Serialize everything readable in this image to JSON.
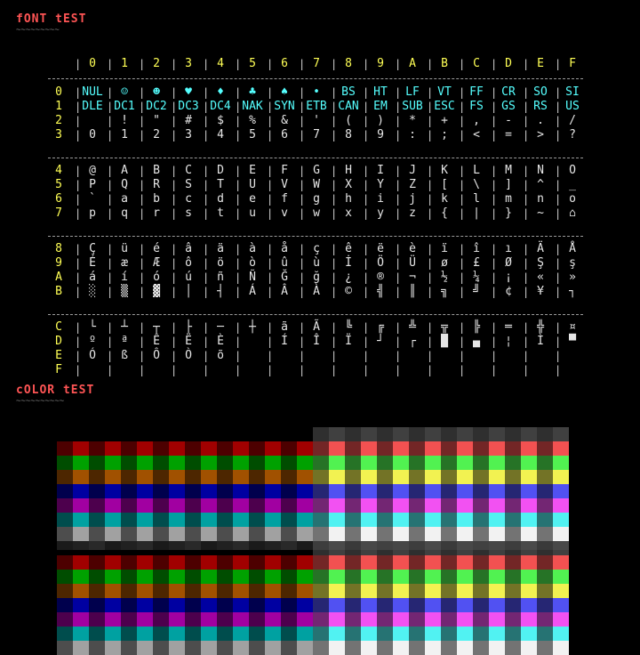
{
  "font_test": {
    "title": "fONT tEST",
    "underline": "~~~~~~~~~",
    "col_headers": [
      "0",
      "1",
      "2",
      "3",
      "4",
      "5",
      "6",
      "7",
      "8",
      "9",
      "A",
      "B",
      "C",
      "D",
      "E",
      "F"
    ],
    "row_headers": [
      "0",
      "1",
      "2",
      "3",
      "4",
      "5",
      "6",
      "7",
      "8",
      "9",
      "A",
      "B",
      "C",
      "D",
      "E",
      "F"
    ],
    "rows": [
      [
        "NUL",
        "☺",
        "☻",
        "♥",
        "♦",
        "♣",
        "♠",
        "•",
        "BS",
        "HT",
        "LF",
        "VT",
        "FF",
        "CR",
        "SO",
        "SI"
      ],
      [
        "DLE",
        "DC1",
        "DC2",
        "DC3",
        "DC4",
        "NAK",
        "SYN",
        "ETB",
        "CAN",
        "EM",
        "SUB",
        "ESC",
        "FS",
        "GS",
        "RS",
        "US"
      ],
      [
        " ",
        "!",
        "\"",
        "#",
        "$",
        "%",
        "&",
        "'",
        "(",
        ")",
        "*",
        "+",
        ",",
        "-",
        ".",
        "/"
      ],
      [
        "0",
        "1",
        "2",
        "3",
        "4",
        "5",
        "6",
        "7",
        "8",
        "9",
        ":",
        ";",
        "<",
        "=",
        ">",
        "?"
      ],
      [
        "@",
        "A",
        "B",
        "C",
        "D",
        "E",
        "F",
        "G",
        "H",
        "I",
        "J",
        "K",
        "L",
        "M",
        "N",
        "O"
      ],
      [
        "P",
        "Q",
        "R",
        "S",
        "T",
        "U",
        "V",
        "W",
        "X",
        "Y",
        "Z",
        "[",
        "\\",
        "]",
        "^",
        "_"
      ],
      [
        "`",
        "a",
        "b",
        "c",
        "d",
        "e",
        "f",
        "g",
        "h",
        "i",
        "j",
        "k",
        "l",
        "m",
        "n",
        "o"
      ],
      [
        "p",
        "q",
        "r",
        "s",
        "t",
        "u",
        "v",
        "w",
        "x",
        "y",
        "z",
        "{",
        "|",
        "}",
        "~",
        "⌂"
      ],
      [
        "Ç",
        "ü",
        "é",
        "â",
        "ä",
        "à",
        "å",
        "ç",
        "ê",
        "ë",
        "è",
        "ï",
        "î",
        "ı",
        "Ä",
        "Å"
      ],
      [
        "É",
        "æ",
        "Æ",
        "ô",
        "ö",
        "ò",
        "û",
        "ù",
        "İ",
        "Ö",
        "Ü",
        "ø",
        "£",
        "Ø",
        "Ş",
        "ş"
      ],
      [
        "á",
        "í",
        "ó",
        "ú",
        "ñ",
        "Ñ",
        "Ğ",
        "ğ",
        "¿",
        "®",
        "¬",
        "½",
        "¼",
        "¡",
        "«",
        "»"
      ],
      [
        "░",
        "▒",
        "▓",
        "│",
        "┤",
        "Á",
        "Â",
        "À",
        "©",
        "╣",
        "║",
        "╗",
        "╝",
        "¢",
        "¥",
        "┐"
      ],
      [
        "└",
        "┴",
        "┬",
        "├",
        "─",
        "┼",
        "ã",
        "Ã",
        "╚",
        "╔",
        "╩",
        "╦",
        "╠",
        "═",
        "╬",
        "¤"
      ],
      [
        "º",
        "ª",
        "Ê",
        "Ë",
        "È",
        " ",
        "Í",
        "Î",
        "Ï",
        "┘",
        "┌",
        "█",
        "▄",
        "¦",
        "Ì",
        "▀"
      ],
      [
        "Ó",
        "ß",
        "Ô",
        "Ò",
        "õ",
        " ",
        " ",
        " ",
        " ",
        " ",
        " ",
        " ",
        " ",
        " ",
        " ",
        " "
      ],
      [
        " ",
        " ",
        " ",
        " ",
        " ",
        " ",
        " ",
        " ",
        " ",
        " ",
        " ",
        " ",
        " ",
        " ",
        " ",
        " "
      ]
    ]
  },
  "color_test": {
    "title": "cOLOR tEST",
    "underline": "~~~~~~~~~~",
    "palette": [
      "#000000",
      "#0000aa",
      "#00aa00",
      "#00aaaa",
      "#aa0000",
      "#aa00aa",
      "#aa5500",
      "#aaaaaa",
      "#555555",
      "#5555ff",
      "#55ff55",
      "#55ffff",
      "#ff5555",
      "#ff55ff",
      "#ffff55",
      "#ffffff"
    ],
    "row_colors": [
      "#aa0000",
      "#00aa00",
      "#aa5500",
      "#0000aa",
      "#aa00aa",
      "#00aaaa",
      "#aaaaaa"
    ],
    "bright_row_colors": [
      "#ff5555",
      "#55ff55",
      "#ffff55",
      "#5555ff",
      "#ff55ff",
      "#55ffff",
      "#ffffff"
    ]
  }
}
